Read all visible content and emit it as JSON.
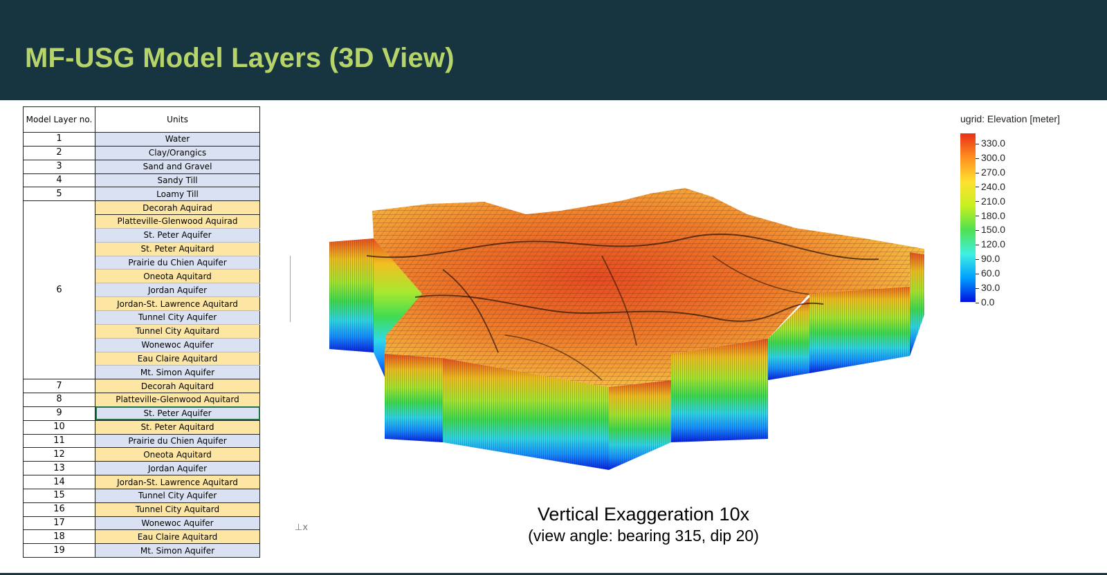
{
  "header": {
    "title": "MF-USG Model Layers (3D View)"
  },
  "table": {
    "col_layer": "Model Layer no.",
    "col_units": "Units",
    "rows": [
      {
        "no": "1",
        "units": [
          "Water"
        ]
      },
      {
        "no": "2",
        "units": [
          "Clay/Orangics"
        ]
      },
      {
        "no": "3",
        "units": [
          "Sand and Gravel"
        ]
      },
      {
        "no": "4",
        "units": [
          "Sandy Till"
        ]
      },
      {
        "no": "5",
        "units": [
          "Loamy Till"
        ]
      },
      {
        "no": "6",
        "units": [
          "Decorah Aquirad",
          "Platteville-Glenwood Aquirad",
          "St. Peter Aquifer",
          "St. Peter Aquitard",
          "Prairie du Chien Aquifer",
          "Oneota Aquitard",
          "Jordan Aquifer",
          "Jordan-St. Lawrence Aquitard",
          "Tunnel City Aquifer",
          "Tunnel City Aquitard",
          "Wonewoc Aquifer",
          "Eau Claire Aquitard",
          "Mt. Simon Aquifer"
        ]
      },
      {
        "no": "7",
        "units": [
          "Decorah Aquitard"
        ]
      },
      {
        "no": "8",
        "units": [
          "Platteville-Glenwood Aquitard"
        ]
      },
      {
        "no": "9",
        "units": [
          "St. Peter Aquifer"
        ]
      },
      {
        "no": "10",
        "units": [
          "St. Peter Aquitard"
        ]
      },
      {
        "no": "11",
        "units": [
          "Prairie du Chien Aquifer"
        ]
      },
      {
        "no": "12",
        "units": [
          "Oneota Aquitard"
        ]
      },
      {
        "no": "13",
        "units": [
          "Jordan Aquifer"
        ]
      },
      {
        "no": "14",
        "units": [
          "Jordan-St. Lawrence Aquitard"
        ]
      },
      {
        "no": "15",
        "units": [
          "Tunnel City Aquifer"
        ]
      },
      {
        "no": "16",
        "units": [
          "Tunnel City Aquitard"
        ]
      },
      {
        "no": "17",
        "units": [
          "Wonewoc Aquifer"
        ]
      },
      {
        "no": "18",
        "units": [
          "Eau Claire Aquitard"
        ]
      },
      {
        "no": "19",
        "units": [
          "Mt. Simon Aquifer"
        ]
      }
    ],
    "colors": {
      "aquifer_fill": "#d9e1f2",
      "aquitard_fill": "#fde6a4",
      "selection_border": "#217346"
    }
  },
  "legend": {
    "title": "ugrid: Elevation [meter]",
    "ticks": [
      "330.0",
      "300.0",
      "270.0",
      "240.0",
      "210.0",
      "180.0",
      "150.0",
      "120.0",
      "90.0",
      "60.0",
      "30.0",
      "0.0"
    ],
    "min": 0,
    "max": 350,
    "colormap": [
      "#0010e0",
      "#00a0ff",
      "#40f0e0",
      "#50e050",
      "#c8f020",
      "#ffe030",
      "#ff9020",
      "#e83018"
    ]
  },
  "caption": {
    "line1": "Vertical Exaggeration 10x",
    "line2": "(view angle: bearing 315, dip 20)"
  },
  "view": {
    "axis_glyph": "⊥x"
  }
}
